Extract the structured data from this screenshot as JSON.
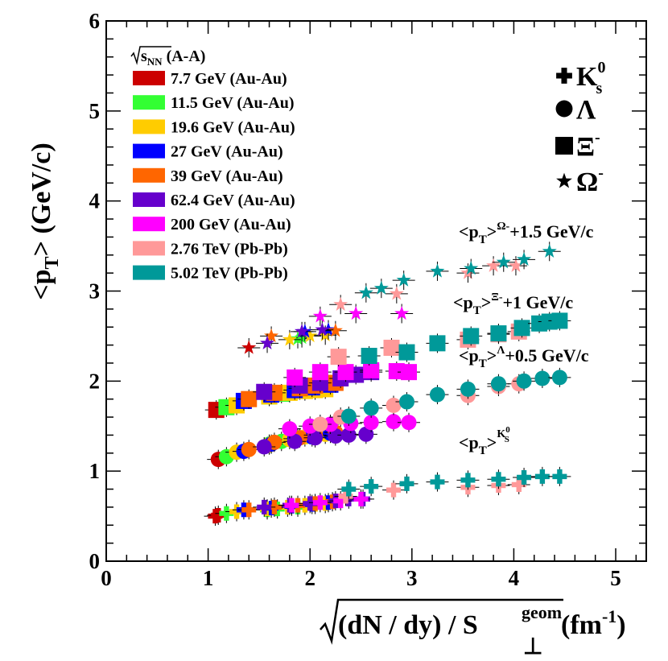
{
  "chart_data": {
    "type": "scatter",
    "xlabel": {
      "main": "(dN / dy) / S",
      "sup": "geom",
      "sub": "⊥",
      "unit": " (fm",
      "unit_sup": "-1",
      "unit_end": ")"
    },
    "ylabel": {
      "main": "<p",
      "sub": "T",
      "rest": "> (GeV/c)"
    },
    "xlim": [
      0,
      5.3
    ],
    "ylim": [
      0,
      6
    ],
    "x_ticks": [
      "0",
      "1",
      "2",
      "3",
      "4",
      "5"
    ],
    "y_ticks": [
      "0",
      "1",
      "2",
      "3",
      "4",
      "5",
      "6"
    ],
    "legend_header": {
      "root": "s",
      "root_sub": "NN",
      "rest": " (A-A)"
    },
    "series": [
      {
        "name": "7.7 GeV (Au-Au)",
        "color": "#cc0000",
        "k0s": [
          [
            1.07,
            0.5
          ],
          [
            1.1,
            0.51
          ]
        ],
        "lambda": [
          [
            1.1,
            1.13
          ]
        ],
        "xi": [
          [
            1.08,
            1.68
          ]
        ],
        "omega": [
          [
            1.4,
            2.37
          ]
        ]
      },
      {
        "name": "11.5 GeV (Au-Au)",
        "color": "#33ff33",
        "k0s": [
          [
            1.18,
            0.53
          ],
          [
            1.58,
            0.57
          ],
          [
            1.68,
            0.58
          ],
          [
            1.88,
            0.6
          ]
        ],
        "lambda": [
          [
            1.18,
            1.16
          ],
          [
            1.6,
            1.3
          ],
          [
            1.72,
            1.33
          ],
          [
            1.88,
            1.37
          ]
        ],
        "xi": [
          [
            1.18,
            1.71
          ],
          [
            1.6,
            1.83
          ],
          [
            1.72,
            1.86
          ],
          [
            1.9,
            1.9
          ]
        ],
        "omega": [
          [
            1.88,
            2.47
          ],
          [
            1.92,
            2.48
          ]
        ]
      },
      {
        "name": "19.6 GeV (Au-Au)",
        "color": "#ffcc00",
        "k0s": [
          [
            1.28,
            0.55
          ],
          [
            1.58,
            0.58
          ],
          [
            1.78,
            0.6
          ],
          [
            1.95,
            0.62
          ],
          [
            2.05,
            0.63
          ],
          [
            2.15,
            0.64
          ]
        ],
        "lambda": [
          [
            1.28,
            1.21
          ],
          [
            1.6,
            1.29
          ],
          [
            1.8,
            1.35
          ],
          [
            1.95,
            1.38
          ],
          [
            2.05,
            1.4
          ],
          [
            2.15,
            1.41
          ]
        ],
        "xi": [
          [
            1.28,
            1.73
          ],
          [
            1.6,
            1.83
          ],
          [
            1.8,
            1.87
          ],
          [
            1.95,
            1.89
          ],
          [
            2.05,
            1.9
          ],
          [
            2.15,
            1.91
          ]
        ],
        "omega": [
          [
            1.8,
            2.46
          ],
          [
            2.0,
            2.5
          ],
          [
            2.15,
            2.51
          ]
        ]
      },
      {
        "name": "27 GeV (Au-Au)",
        "color": "#0000ff",
        "k0s": [
          [
            1.35,
            0.57
          ],
          [
            1.62,
            0.59
          ],
          [
            1.82,
            0.61
          ],
          [
            2.02,
            0.63
          ],
          [
            2.18,
            0.65
          ]
        ],
        "lambda": [
          [
            1.35,
            1.22
          ],
          [
            1.62,
            1.3
          ],
          [
            1.85,
            1.36
          ],
          [
            2.02,
            1.38
          ],
          [
            2.2,
            1.42
          ]
        ],
        "xi": [
          [
            1.35,
            1.78
          ],
          [
            1.62,
            1.85
          ],
          [
            1.85,
            1.9
          ],
          [
            2.02,
            1.93
          ],
          [
            2.2,
            1.96
          ]
        ],
        "omega": [
          [
            1.95,
            2.55
          ],
          [
            2.18,
            2.57
          ]
        ]
      },
      {
        "name": "39 GeV (Au-Au)",
        "color": "#ff6600",
        "k0s": [
          [
            1.4,
            0.57
          ],
          [
            1.65,
            0.6
          ],
          [
            1.88,
            0.62
          ],
          [
            2.05,
            0.64
          ],
          [
            2.22,
            0.66
          ]
        ],
        "lambda": [
          [
            1.4,
            1.24
          ],
          [
            1.65,
            1.32
          ],
          [
            1.9,
            1.37
          ],
          [
            2.05,
            1.4
          ],
          [
            2.25,
            1.43
          ]
        ],
        "xi": [
          [
            1.4,
            1.8
          ],
          [
            1.65,
            1.87
          ],
          [
            1.9,
            1.92
          ],
          [
            2.05,
            1.95
          ],
          [
            2.25,
            1.98
          ]
        ],
        "omega": [
          [
            1.62,
            2.5
          ],
          [
            2.25,
            2.56
          ]
        ]
      },
      {
        "name": "62.4 GeV (Au-Au)",
        "color": "#6600cc",
        "k0s": [
          [
            1.55,
            0.6
          ],
          [
            1.8,
            0.62
          ],
          [
            2.0,
            0.64
          ],
          [
            2.25,
            0.67
          ],
          [
            2.38,
            0.69
          ],
          [
            2.52,
            0.69
          ]
        ],
        "lambda": [
          [
            1.55,
            1.27
          ],
          [
            1.85,
            1.33
          ],
          [
            2.05,
            1.37
          ],
          [
            2.25,
            1.39
          ],
          [
            2.38,
            1.4
          ],
          [
            2.55,
            1.41
          ]
        ],
        "xi": [
          [
            1.55,
            1.88
          ],
          [
            1.9,
            1.95
          ],
          [
            2.1,
            1.98
          ],
          [
            2.3,
            2.03
          ],
          [
            2.45,
            2.07
          ],
          [
            2.6,
            2.1
          ]
        ],
        "omega": [
          [
            1.58,
            2.42
          ],
          [
            1.92,
            2.55
          ],
          [
            2.12,
            2.57
          ]
        ]
      },
      {
        "name": "200 GeV (Au-Au)",
        "color": "#ff00ff",
        "k0s": [
          [
            1.82,
            0.62
          ],
          [
            2.1,
            0.65
          ],
          [
            2.3,
            0.67
          ],
          [
            2.5,
            0.69
          ]
        ],
        "lambda": [
          [
            1.8,
            1.47
          ],
          [
            2.0,
            1.5
          ],
          [
            2.2,
            1.52
          ],
          [
            2.4,
            1.53
          ],
          [
            2.6,
            1.54
          ],
          [
            2.82,
            1.55
          ],
          [
            2.97,
            1.54
          ]
        ],
        "xi": [
          [
            1.85,
            2.04
          ],
          [
            2.1,
            2.1
          ],
          [
            2.35,
            2.1
          ],
          [
            2.6,
            2.12
          ],
          [
            2.85,
            2.11
          ],
          [
            2.97,
            2.1
          ]
        ],
        "omega": [
          [
            2.1,
            2.72
          ],
          [
            2.45,
            2.75
          ],
          [
            2.9,
            2.75
          ]
        ]
      },
      {
        "name": "2.76 TeV (Pb-Pb)",
        "color": "#ff9999",
        "k0s": [
          [
            2.35,
            0.72
          ],
          [
            2.82,
            0.79
          ],
          [
            3.55,
            0.82
          ],
          [
            3.85,
            0.84
          ],
          [
            4.05,
            0.85
          ]
        ],
        "lambda": [
          [
            2.1,
            1.52
          ],
          [
            2.3,
            1.6
          ],
          [
            2.82,
            1.73
          ],
          [
            3.55,
            1.84
          ],
          [
            3.85,
            1.94
          ],
          [
            4.05,
            1.97
          ]
        ],
        "xi": [
          [
            2.28,
            2.27
          ],
          [
            2.8,
            2.37
          ],
          [
            3.55,
            2.46
          ],
          [
            3.85,
            2.52
          ],
          [
            4.05,
            2.55
          ]
        ],
        "omega": [
          [
            2.3,
            2.85
          ],
          [
            2.85,
            2.97
          ],
          [
            3.55,
            3.2
          ],
          [
            3.8,
            3.28
          ],
          [
            4.02,
            3.28
          ]
        ]
      },
      {
        "name": "5.02 TeV (Pb-Pb)",
        "color": "#009999",
        "k0s": [
          [
            2.38,
            0.8
          ],
          [
            2.6,
            0.83
          ],
          [
            2.95,
            0.86
          ],
          [
            3.25,
            0.88
          ],
          [
            3.55,
            0.9
          ],
          [
            3.85,
            0.91
          ],
          [
            4.1,
            0.93
          ],
          [
            4.28,
            0.94
          ],
          [
            4.45,
            0.94
          ]
        ],
        "lambda": [
          [
            2.38,
            1.61
          ],
          [
            2.6,
            1.7
          ],
          [
            2.95,
            1.77
          ],
          [
            3.25,
            1.85
          ],
          [
            3.55,
            1.91
          ],
          [
            3.85,
            1.97
          ],
          [
            4.1,
            2.0
          ],
          [
            4.28,
            2.03
          ],
          [
            4.45,
            2.04
          ]
        ],
        "xi": [
          [
            2.58,
            2.28
          ],
          [
            2.95,
            2.32
          ],
          [
            3.25,
            2.42
          ],
          [
            3.58,
            2.5
          ],
          [
            3.85,
            2.53
          ],
          [
            4.08,
            2.59
          ],
          [
            4.25,
            2.64
          ],
          [
            4.35,
            2.66
          ],
          [
            4.45,
            2.67
          ]
        ],
        "omega": [
          [
            2.55,
            2.98
          ],
          [
            2.7,
            3.03
          ],
          [
            2.92,
            3.12
          ],
          [
            3.25,
            3.22
          ],
          [
            3.58,
            3.25
          ],
          [
            3.9,
            3.32
          ],
          [
            4.1,
            3.35
          ],
          [
            4.35,
            3.44
          ]
        ]
      }
    ],
    "particle_legend": [
      {
        "symbol": "plus",
        "label": "K",
        "sup": "0",
        "sub": "s"
      },
      {
        "symbol": "circle",
        "label": "Λ",
        "sup": "",
        "sub": ""
      },
      {
        "symbol": "square",
        "label": "Ξ",
        "sup": "-",
        "sub": ""
      },
      {
        "symbol": "star",
        "label": "Ω",
        "sup": "-",
        "sub": ""
      }
    ],
    "annotations": {
      "omega": {
        "pre": "<p",
        "sub": "T",
        "mid": ">",
        "sup": "Ω-",
        "post": "+1.5 GeV/c"
      },
      "xi": {
        "pre": "<p",
        "sub": "T",
        "mid": ">",
        "sup": "Ξ-",
        "post": "+1 GeV/c"
      },
      "lambda": {
        "pre": "<p",
        "sub": "T",
        "mid": ">",
        "sup": "Λ",
        "post": "+0.5 GeV/c"
      },
      "k0s": {
        "pre": "<p",
        "sub": "T",
        "mid": ">",
        "sup": "K",
        "sup_sup": "0",
        "sup_sub": "S",
        "post": ""
      }
    }
  }
}
